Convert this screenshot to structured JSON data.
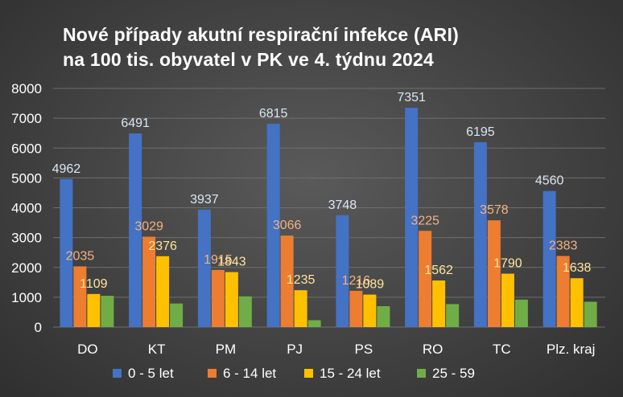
{
  "chart_data": {
    "type": "bar",
    "title": [
      "Nové případy akutní respirační infekce (ARI)",
      "na 100 tis. obyvatel v PK ve 4. týdnu 2024"
    ],
    "categories": [
      "DO",
      "KT",
      "PM",
      "PJ",
      "PS",
      "RO",
      "TC",
      "Plz. kraj"
    ],
    "series": [
      {
        "name": "0 - 5 let",
        "color": "#4472c4",
        "values": [
          4962,
          6491,
          3937,
          6815,
          3748,
          7351,
          6195,
          4560
        ],
        "labels_shown": true,
        "label_color": "#dce6f2"
      },
      {
        "name": "6 - 14 let",
        "color": "#ed7d31",
        "values": [
          2035,
          3029,
          1915,
          3066,
          1216,
          3225,
          3578,
          2383
        ],
        "labels_shown": true,
        "label_color": "#f4b183"
      },
      {
        "name": "15 - 24  let",
        "color": "#ffc000",
        "values": [
          1109,
          2376,
          1843,
          1235,
          1089,
          1562,
          1790,
          1638
        ],
        "labels_shown": true,
        "label_color": "#ffe699"
      },
      {
        "name": "25 - 59",
        "color": "#70ad47",
        "values": [
          1050,
          790,
          1030,
          230,
          700,
          770,
          920,
          850
        ],
        "labels_shown": false
      }
    ],
    "ylim": [
      0,
      8000
    ],
    "yticks": [
      0,
      1000,
      2000,
      3000,
      4000,
      5000,
      6000,
      7000,
      8000
    ],
    "grid": true,
    "legend_position": "bottom"
  }
}
